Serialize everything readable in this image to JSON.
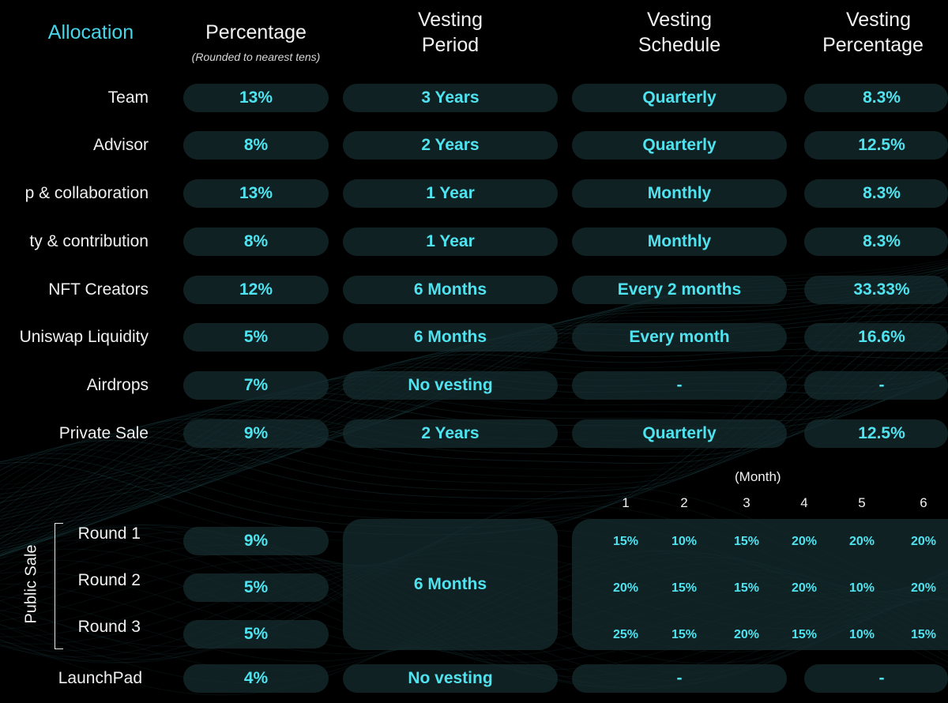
{
  "headers": {
    "allocation": "Allocation",
    "percentage": "Percentage",
    "percentage_note": "(Rounded to nearest tens)",
    "vesting_period": [
      "Vesting",
      "Period"
    ],
    "vesting_schedule": [
      "Vesting",
      "Schedule"
    ],
    "vesting_percentage": [
      "Vesting",
      "Percentage"
    ]
  },
  "rows": [
    {
      "label": "Team",
      "percentage": "13%",
      "period": "3 Years",
      "schedule": "Quarterly",
      "vest_pct": "8.3%"
    },
    {
      "label": "Advisor",
      "percentage": "8%",
      "period": "2 Years",
      "schedule": "Quarterly",
      "vest_pct": "12.5%"
    },
    {
      "label": "p & collaboration",
      "percentage": "13%",
      "period": "1 Year",
      "schedule": "Monthly",
      "vest_pct": "8.3%"
    },
    {
      "label": "ty & contribution",
      "percentage": "8%",
      "period": "1 Year",
      "schedule": "Monthly",
      "vest_pct": "8.3%"
    },
    {
      "label": "NFT Creators",
      "percentage": "12%",
      "period": "6 Months",
      "schedule": "Every 2 months",
      "vest_pct": "33.33%"
    },
    {
      "label": "Uniswap Liquidity",
      "percentage": "5%",
      "period": "6 Months",
      "schedule": "Every month",
      "vest_pct": "16.6%"
    },
    {
      "label": "Airdrops",
      "percentage": "7%",
      "period": "No vesting",
      "schedule": "-",
      "vest_pct": "-"
    },
    {
      "label": "Private Sale",
      "percentage": "9%",
      "period": "2 Years",
      "schedule": "Quarterly",
      "vest_pct": "12.5%"
    }
  ],
  "public_sale": {
    "group_label": "Public Sale",
    "month_header": "(Month)",
    "months": [
      "1",
      "2",
      "3",
      "4",
      "5",
      "6"
    ],
    "period": "6 Months",
    "rounds": [
      {
        "label": "Round 1",
        "percentage": "9%",
        "monthly": [
          "15%",
          "10%",
          "15%",
          "20%",
          "20%",
          "20%"
        ]
      },
      {
        "label": "Round 2",
        "percentage": "5%",
        "monthly": [
          "20%",
          "15%",
          "15%",
          "20%",
          "10%",
          "20%"
        ]
      },
      {
        "label": "Round 3",
        "percentage": "5%",
        "monthly": [
          "25%",
          "15%",
          "20%",
          "15%",
          "10%",
          "15%"
        ]
      }
    ]
  },
  "launchpad": {
    "label": "LaunchPad",
    "percentage": "4%",
    "period": "No vesting",
    "schedule": "-",
    "vest_pct": "-"
  },
  "colors": {
    "accent": "#4fe3f0",
    "pill": "#162e30",
    "background": "#000000"
  }
}
